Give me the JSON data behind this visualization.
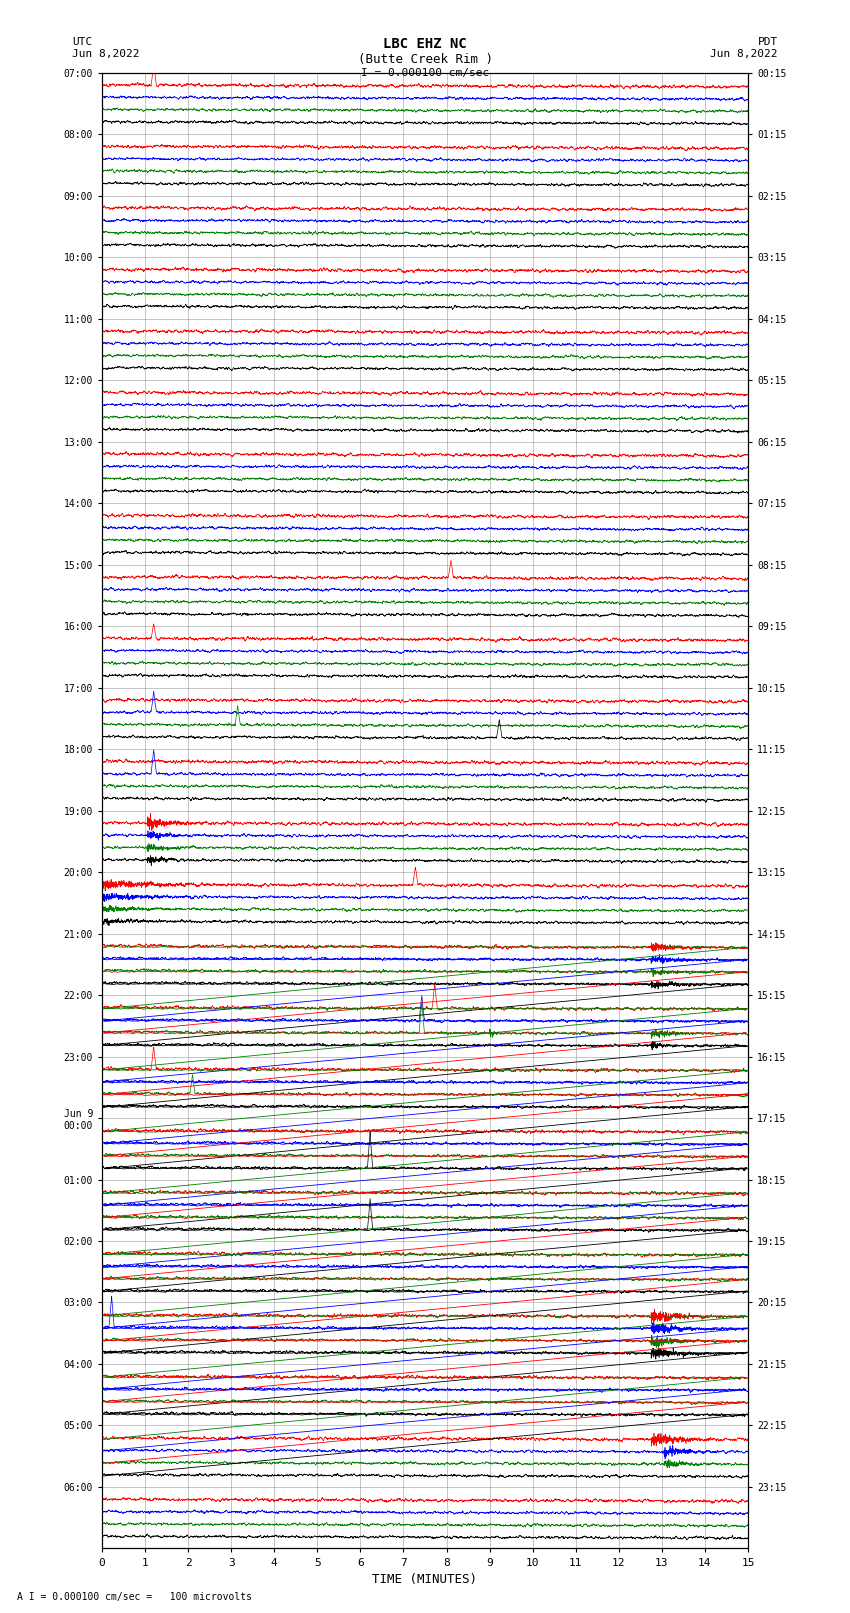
{
  "title_line1": "LBC EHZ NC",
  "title_line2": "(Butte Creek Rim )",
  "scale_label": "I = 0.000100 cm/sec",
  "left_label": "UTC\nJun 8,2022",
  "right_label": "PDT\nJun 8,2022",
  "xlabel": "TIME (MINUTES)",
  "footer": "A I = 0.000100 cm/sec =   100 microvolts",
  "left_times_utc": [
    "07:00",
    "08:00",
    "09:00",
    "10:00",
    "11:00",
    "12:00",
    "13:00",
    "14:00",
    "15:00",
    "16:00",
    "17:00",
    "18:00",
    "19:00",
    "20:00",
    "21:00",
    "22:00",
    "23:00",
    "Jun 9\n00:00",
    "01:00",
    "02:00",
    "03:00",
    "04:00",
    "05:00",
    "06:00"
  ],
  "right_times_pdt": [
    "00:15",
    "01:15",
    "02:15",
    "03:15",
    "04:15",
    "05:15",
    "06:15",
    "07:15",
    "08:15",
    "09:15",
    "10:15",
    "11:15",
    "12:15",
    "13:15",
    "14:15",
    "15:15",
    "16:15",
    "17:15",
    "18:15",
    "19:15",
    "20:15",
    "21:15",
    "22:15",
    "23:15"
  ],
  "bg_color": "#ffffff",
  "grid_color": "#999999",
  "trace_colors": [
    "#000000",
    "#ff0000",
    "#0000ff",
    "#008000"
  ],
  "line_width": 0.5,
  "xmin": 0,
  "xmax": 15,
  "seed": 12345
}
